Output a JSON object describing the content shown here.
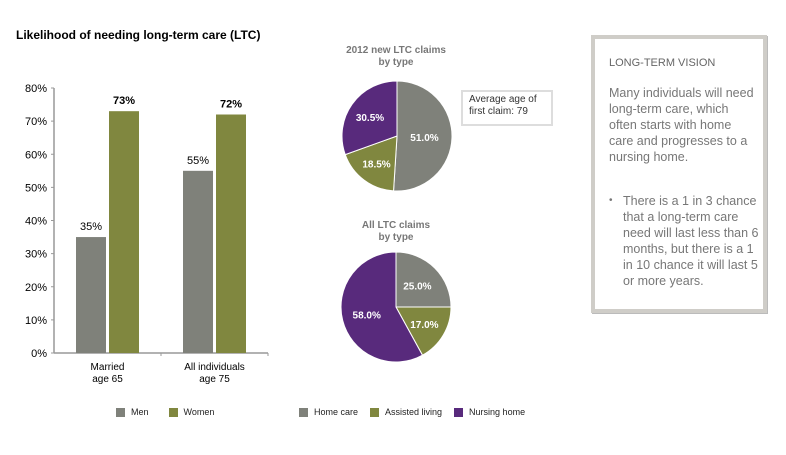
{
  "title": "Likelihood of needing long-term care (LTC)",
  "chart_data": [
    {
      "type": "bar",
      "title": "Likelihood of needing long-term care (LTC)",
      "categories": [
        "Married\nage 65",
        "All individuals\nage 75"
      ],
      "category_lines": [
        [
          "Married",
          "age 65"
        ],
        [
          "All individuals",
          "age 75"
        ]
      ],
      "series": [
        {
          "name": "Men",
          "values": [
            35,
            55
          ],
          "color": "#7f817a"
        },
        {
          "name": "Women",
          "values": [
            73,
            72
          ],
          "color": "#80873f"
        }
      ],
      "data_labels": [
        [
          "35%",
          "73%"
        ],
        [
          "55%",
          "72%"
        ]
      ],
      "ylim": [
        0,
        80
      ],
      "yticks": [
        "0%",
        "10%",
        "20%",
        "30%",
        "40%",
        "50%",
        "60%",
        "70%",
        "80%"
      ],
      "xlabel": "",
      "ylabel": "",
      "grid": false,
      "legend": "bottom"
    },
    {
      "type": "pie",
      "title": "2012 new LTC claims by type",
      "title_lines": [
        "2012 new LTC claims",
        "by type"
      ],
      "slices": [
        {
          "name": "Home care",
          "value": 51.0,
          "label": "51.0%",
          "color": "#7f817a"
        },
        {
          "name": "Assisted living",
          "value": 18.5,
          "label": "18.5%",
          "color": "#80873f"
        },
        {
          "name": "Nursing home",
          "value": 30.5,
          "label": "30.5%",
          "color": "#582a7c"
        }
      ],
      "annotation": "Average age of first claim: 79"
    },
    {
      "type": "pie",
      "title": "All LTC claims by type",
      "title_lines": [
        "All LTC claims",
        "by type"
      ],
      "slices": [
        {
          "name": "Home care",
          "value": 25.0,
          "label": "25.0%",
          "color": "#7f817a"
        },
        {
          "name": "Assisted living",
          "value": 17.0,
          "label": "17.0%",
          "color": "#80873f"
        },
        {
          "name": "Nursing home",
          "value": 58.0,
          "label": "58.0%",
          "color": "#582a7c"
        }
      ],
      "legend": "bottom"
    }
  ],
  "bar_legend": [
    {
      "label": "Men",
      "color": "#7f817a"
    },
    {
      "label": "Women",
      "color": "#80873f"
    }
  ],
  "pie_legend": [
    {
      "label": "Home care",
      "color": "#7f817a"
    },
    {
      "label": "Assisted living",
      "color": "#80873f"
    },
    {
      "label": "Nursing home",
      "color": "#582a7c"
    }
  ],
  "callout": {
    "line1": "Average age of",
    "line2": "first claim: 79"
  },
  "sidebar": {
    "heading": "LONG-TERM VISION",
    "paragraph": "Many individuals will need long-term care, which often starts with home care and progresses to a nursing home.",
    "bullet": "There is a 1 in 3 chance that a long-term care need will last less than 6 months, but there is a 1 in 10 chance it will last 5 or more years.",
    "bullet_marker": "•"
  }
}
